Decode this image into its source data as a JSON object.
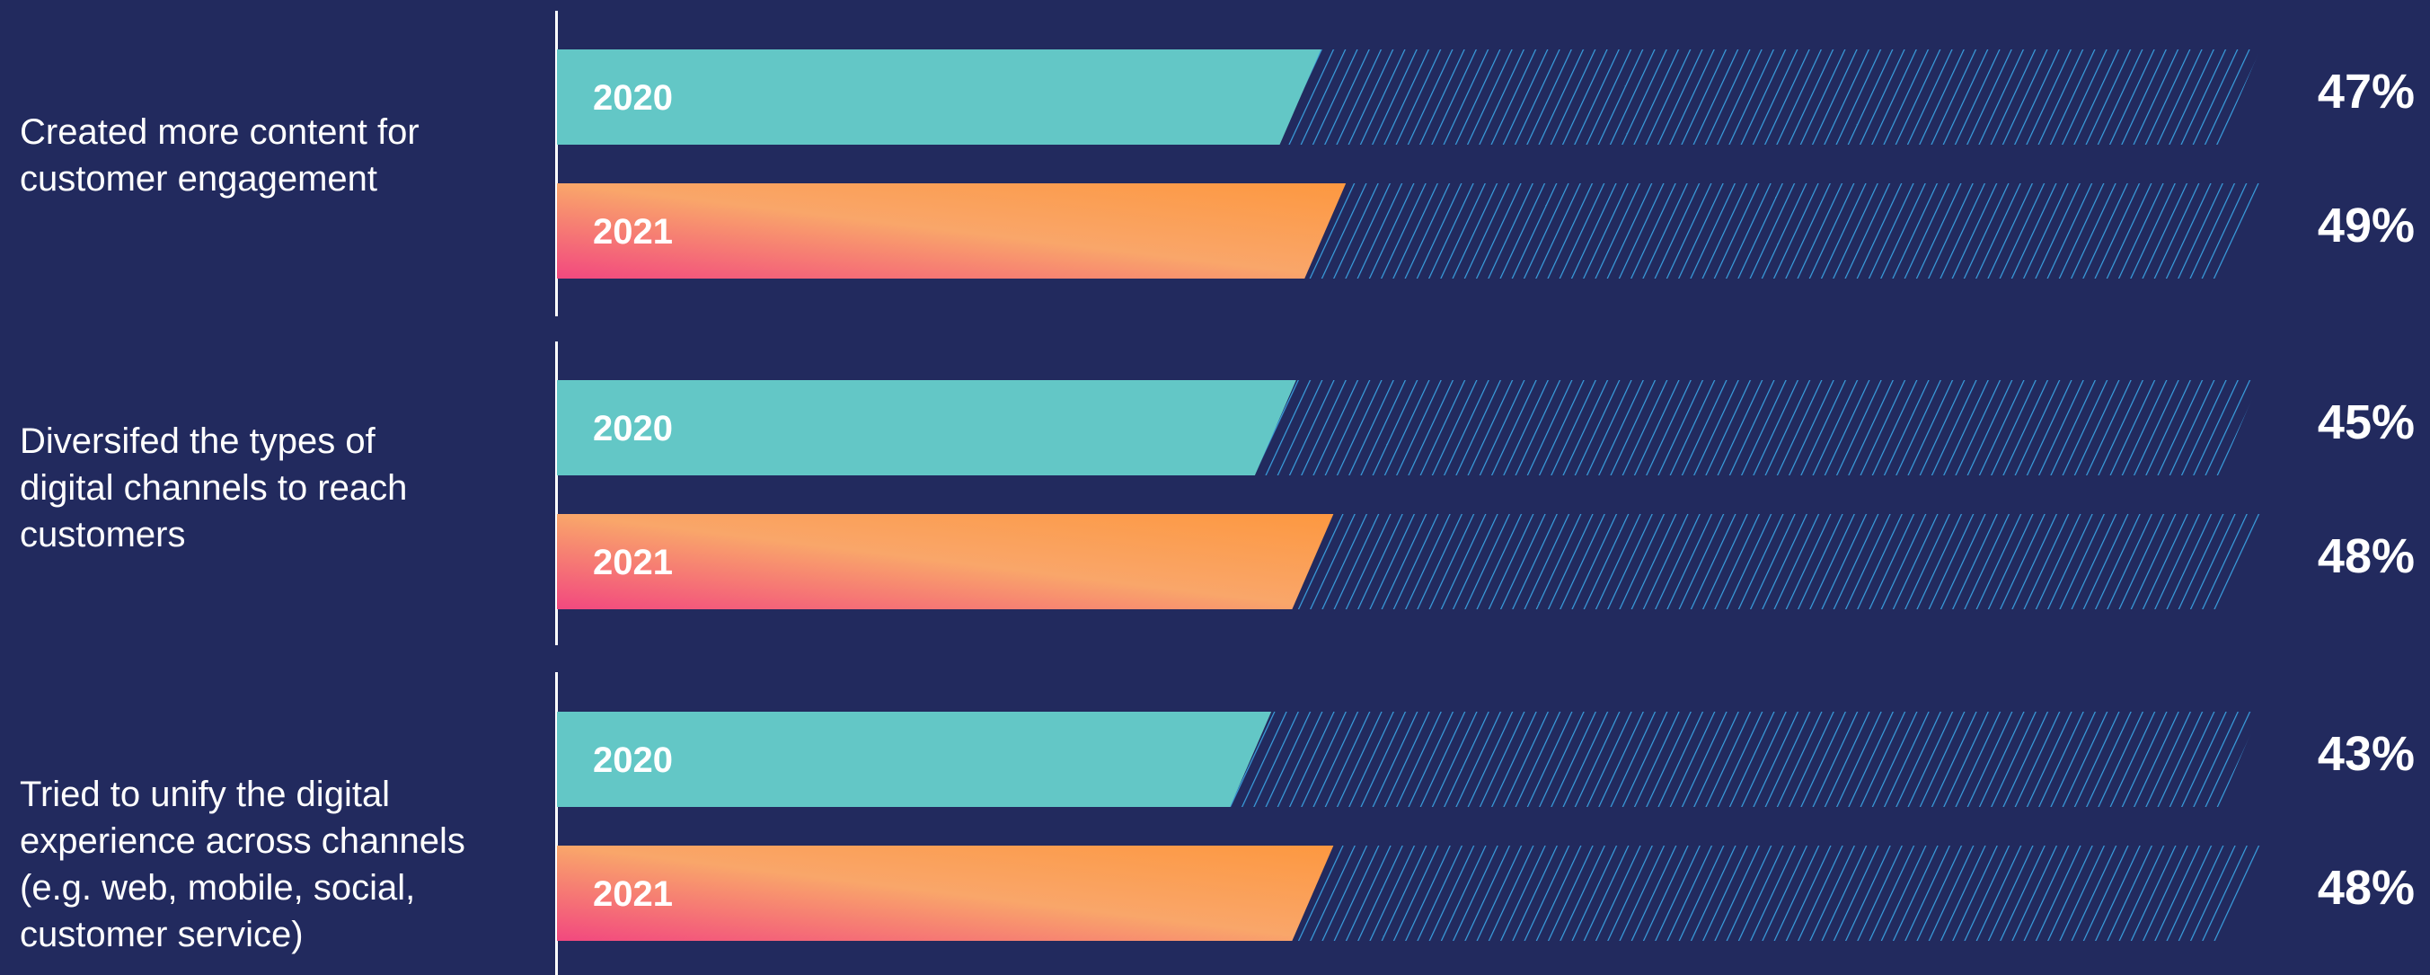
{
  "chart_data": {
    "type": "bar",
    "orientation": "horizontal",
    "categories": [
      "Created more content for customer engagement",
      "Diversifed the types of digital channels to reach customers",
      "Tried to unify the digital experience across channels (e.g. web, mobile, social, customer service)"
    ],
    "category_lines": [
      [
        "Created more content for",
        "customer engagement"
      ],
      [
        "Diversifed the types of",
        "digital channels to reach",
        "customers"
      ],
      [
        "Tried to unify the digital",
        "experience across channels",
        "(e.g. web, mobile, social,",
        "customer service)"
      ]
    ],
    "series": [
      {
        "name": "2020",
        "values": [
          47,
          45,
          43
        ],
        "labels": [
          "47%",
          "45%",
          "43%"
        ]
      },
      {
        "name": "2021",
        "values": [
          49,
          48,
          48
        ],
        "labels": [
          "49%",
          "48%",
          "48%"
        ]
      }
    ],
    "xlim": [
      0,
      100
    ],
    "grid": false,
    "legend": "none",
    "colors": {
      "background": "#222a5e",
      "series_2020": "#63c7c6",
      "series_2021_gradient": [
        "#f2487f",
        "#f9a66a",
        "#fd9840"
      ],
      "remainder_hatch": "#3aa0e0",
      "text": "#ffffff"
    }
  }
}
